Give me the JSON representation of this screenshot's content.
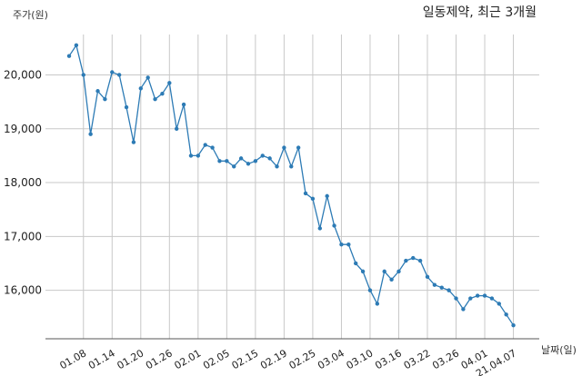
{
  "chart_data": {
    "type": "line",
    "title": "일동제약, 최근 3개월",
    "ylabel": "주가(원)",
    "xlabel": "날짜(일)",
    "ylim": [
      15100,
      20750
    ],
    "yticks": [
      16000,
      17000,
      18000,
      19000,
      20000
    ],
    "ytick_labels": [
      "16,000",
      "17,000",
      "18,000",
      "19,000",
      "20,000"
    ],
    "grid": true,
    "colors": {
      "line": "#2d7bb5",
      "grid": "#c8c8c8",
      "axis": "#555555"
    },
    "xtick_labels": [
      "01.08",
      "01.14",
      "01.20",
      "01.26",
      "02.01",
      "02.05",
      "02.15",
      "02.19",
      "02.25",
      "03.04",
      "03.10",
      "03.16",
      "03.22",
      "03.26",
      "04.01",
      "21.04.07"
    ],
    "xtick_index": [
      2,
      6,
      10,
      14,
      18,
      22,
      26,
      30,
      34,
      38,
      42,
      46,
      50,
      54,
      58,
      62
    ],
    "series": [
      {
        "values": [
          20350,
          20550,
          20000,
          18900,
          19700,
          19550,
          20050,
          20000,
          19400,
          18750,
          19750,
          19950,
          19550,
          19650,
          19850,
          19000,
          19450,
          18500,
          18500,
          18700,
          18650,
          18400,
          18400,
          18300,
          18450,
          18350,
          18400,
          18500,
          18450,
          18300,
          18650,
          18300,
          18650,
          17800,
          17700,
          17150,
          17750,
          17200,
          16850,
          16850,
          16500,
          16350,
          16000,
          15750,
          16350,
          16200,
          16350,
          16550,
          16600,
          16550,
          16250,
          16100,
          16050,
          16000,
          15850,
          15650,
          15850,
          15900,
          15900,
          15850,
          15750,
          15550,
          15350
        ]
      }
    ]
  }
}
